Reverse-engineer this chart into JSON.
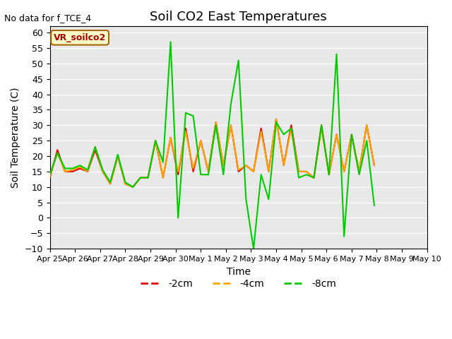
{
  "title": "Soil CO2 East Temperatures",
  "no_data_text": "No data for f_TCE_4",
  "xlabel": "Time",
  "ylabel": "Soil Temperature (C)",
  "ylim": [
    -10,
    62
  ],
  "yticks": [
    -10,
    -5,
    0,
    5,
    10,
    15,
    20,
    25,
    30,
    35,
    40,
    45,
    50,
    55,
    60
  ],
  "legend_label": "VR_soilco2",
  "legend_loc": "upper left",
  "bg_color": "#e8e8e8",
  "line_colors": {
    "2cm": "#dd0000",
    "4cm": "#ffa500",
    "8cm": "#00cc00"
  },
  "x_labels": [
    "Apr 25",
    "Apr 26",
    "Apr 27",
    "Apr 28",
    "Apr 29",
    "Apr 30",
    "May 1",
    "May 2",
    "May 3",
    "May 4",
    "May 5",
    "May 6",
    "May 7",
    "May 8",
    "May 9",
    "May 10"
  ],
  "x_values": [
    0,
    1,
    2,
    3,
    4,
    5,
    6,
    7,
    8,
    9,
    10,
    11,
    12,
    13,
    14,
    15
  ],
  "data_2cm": [
    13,
    22,
    15,
    15,
    16,
    15,
    22,
    15,
    11,
    20,
    11,
    10,
    13,
    13,
    25,
    13,
    26,
    14,
    29,
    15,
    25,
    15,
    31,
    17,
    30,
    15,
    17,
    15,
    29,
    15,
    32,
    17,
    30,
    15,
    15,
    13,
    30,
    14,
    27,
    15,
    27,
    15,
    30,
    17
  ],
  "data_4cm": [
    13.5,
    21,
    15,
    15.5,
    16.5,
    15,
    23,
    15,
    11,
    20,
    11,
    10,
    13,
    13,
    25,
    13,
    26,
    15,
    28,
    16,
    25,
    15,
    31,
    17,
    30,
    15.5,
    17,
    15,
    28,
    15,
    32,
    17,
    29,
    15,
    15,
    13,
    29,
    14,
    27,
    15,
    27,
    15,
    30,
    17
  ],
  "data_8cm": [
    14,
    21,
    16,
    16,
    17,
    15.5,
    23,
    15.5,
    11.5,
    20.5,
    11.5,
    10,
    13,
    13,
    25,
    18,
    57,
    0,
    34,
    33,
    14,
    14,
    30,
    14,
    37,
    51,
    6,
    -10,
    14,
    6,
    31,
    27,
    29,
    13,
    14,
    13,
    30,
    14,
    53,
    -6,
    27,
    14,
    25,
    4
  ],
  "x_fine_2cm": [
    0.0,
    0.3,
    0.6,
    0.9,
    1.2,
    1.5,
    1.8,
    2.1,
    2.4,
    2.7,
    3.0,
    3.3,
    3.6,
    3.9,
    4.2,
    4.5,
    4.8,
    5.1,
    5.4,
    5.7,
    6.0,
    6.3,
    6.6,
    6.9,
    7.2,
    7.5,
    7.8,
    8.1,
    8.4,
    8.7,
    9.0,
    9.3,
    9.6,
    9.9,
    10.2,
    10.5,
    10.8,
    11.1,
    11.4,
    11.7,
    12.0,
    12.3,
    12.6,
    12.9
  ],
  "tick_positions": [
    0,
    1,
    2,
    3,
    4,
    5,
    6,
    7,
    8,
    9,
    10,
    11,
    12,
    13,
    14,
    15
  ]
}
